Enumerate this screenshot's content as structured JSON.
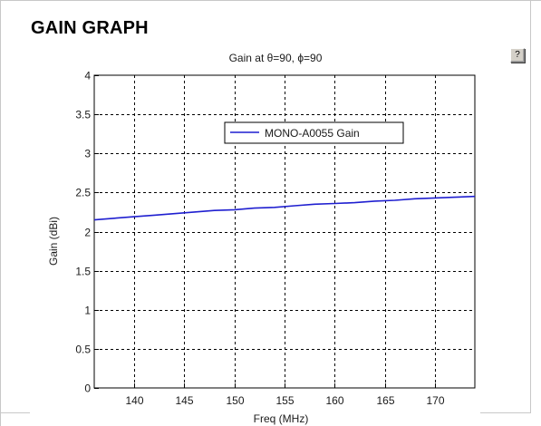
{
  "page": {
    "heading": "GAIN GRAPH",
    "help_label": "?"
  },
  "chart_data": {
    "type": "line",
    "title": "Gain at θ=90, ϕ=90",
    "xlabel": "Freq (MHz)",
    "ylabel": "Gain (dBi)",
    "xlim": [
      136,
      174
    ],
    "ylim": [
      0,
      4
    ],
    "xticks": [
      140,
      145,
      150,
      155,
      160,
      165,
      170
    ],
    "yticks": [
      0,
      0.5,
      1,
      1.5,
      2,
      2.5,
      3,
      3.5,
      4
    ],
    "ytick_labels": [
      "0",
      "0.5",
      "1",
      "1.5",
      "2",
      "2.5",
      "3",
      "3.5",
      "4"
    ],
    "grid": true,
    "legend_position": "center-top",
    "series": [
      {
        "name": "MONO-A0055 Gain",
        "color": "#1f1fd0",
        "x": [
          136,
          138,
          140,
          142,
          144,
          146,
          148,
          150,
          152,
          154,
          156,
          158,
          160,
          162,
          164,
          166,
          168,
          170,
          172,
          174
        ],
        "y": [
          2.15,
          2.17,
          2.19,
          2.21,
          2.23,
          2.25,
          2.27,
          2.28,
          2.3,
          2.31,
          2.33,
          2.35,
          2.36,
          2.37,
          2.39,
          2.4,
          2.42,
          2.43,
          2.44,
          2.45
        ]
      }
    ]
  }
}
